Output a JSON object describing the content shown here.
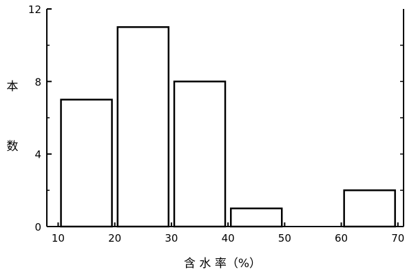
{
  "chart_data": {
    "type": "bar",
    "xlabel": "含 水 率（%）",
    "ylabel": "本数",
    "bins": [
      {
        "x0": 10,
        "x1": 20,
        "value": 7
      },
      {
        "x0": 20,
        "x1": 30,
        "value": 11
      },
      {
        "x0": 30,
        "x1": 40,
        "value": 8
      },
      {
        "x0": 40,
        "x1": 50,
        "value": 1
      },
      {
        "x0": 50,
        "x1": 60,
        "value": 0
      },
      {
        "x0": 60,
        "x1": 70,
        "value": 2
      }
    ],
    "x_ticks": [
      10,
      20,
      30,
      40,
      50,
      60,
      70
    ],
    "y_ticks": [
      0,
      4,
      8,
      12
    ],
    "xlim": [
      8,
      71
    ],
    "ylim": [
      0,
      12
    ],
    "grid": false,
    "colors": {
      "stroke": "#000000",
      "fill": "#ffffff"
    }
  }
}
